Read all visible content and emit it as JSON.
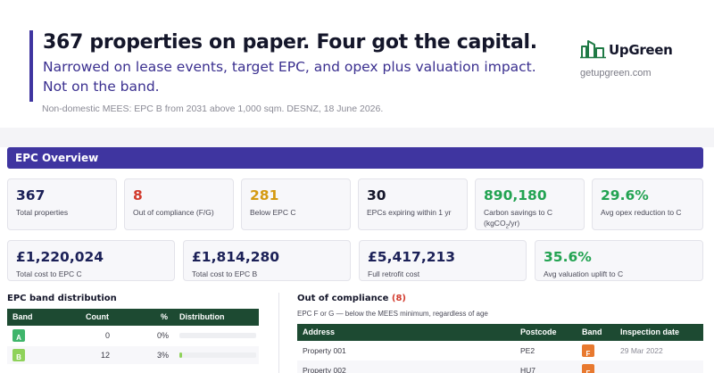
{
  "header": {
    "headline": "367 properties on paper. Four got the capital.",
    "subline_1": "Narrowed on lease events, target EPC, and opex plus valuation impact.",
    "subline_2": "Not on the band.",
    "source": "Non-domestic MEES: EPC B from 2031 above 1,000 sqm. DESNZ, 18 June 2026."
  },
  "brand": {
    "name": "UpGreen",
    "url": "getupgreen.com",
    "color": "#1f7a45"
  },
  "section": {
    "title": "EPC Overview",
    "color": "#3f35a0"
  },
  "kpis_row1": [
    {
      "value": "367",
      "label": "Total properties"
    },
    {
      "value": "8",
      "label": "Out of compliance (F/G)"
    },
    {
      "value": "281",
      "label": "Below EPC C"
    },
    {
      "value": "30",
      "label": "EPCs expiring within 1 yr"
    },
    {
      "value": "890,180",
      "label_1": "Carbon savings to C",
      "label_2": "(kgCO",
      "label_sub": "2",
      "label_3": "/yr)"
    },
    {
      "value": "29.6%",
      "label": "Avg opex reduction to C"
    }
  ],
  "kpis_row2": [
    {
      "value": "£1,220,024",
      "label": "Total cost to EPC C"
    },
    {
      "value": "£1,814,280",
      "label": "Total cost to EPC B"
    },
    {
      "value": "£5,417,213",
      "label": "Full retrofit cost"
    },
    {
      "value": "35.6%",
      "label": "Avg valuation uplift to C"
    }
  ],
  "distribution": {
    "title": "EPC band distribution",
    "columns": {
      "band": "Band",
      "count": "Count",
      "pct": "%",
      "dist": "Distribution"
    },
    "rows": [
      {
        "band": "A",
        "count": "0",
        "pct": "0%",
        "fraction": 0.0,
        "color": "#3fb56b"
      },
      {
        "band": "B",
        "count": "12",
        "pct": "3%",
        "fraction": 0.03,
        "color": "#8fd25a"
      }
    ]
  },
  "compliance": {
    "title": "Out of compliance",
    "count": "(8)",
    "subtitle": "EPC F or G — below the MEES minimum, regardless of age",
    "columns": {
      "address": "Address",
      "postcode": "Postcode",
      "band": "Band",
      "date": "Inspection date"
    },
    "rows": [
      {
        "address": "Property 001",
        "postcode": "PE2",
        "band": "F",
        "date": "29 Mar 2022"
      },
      {
        "address": "Property 002",
        "postcode": "HU7",
        "band": "F",
        "date": ""
      }
    ]
  }
}
